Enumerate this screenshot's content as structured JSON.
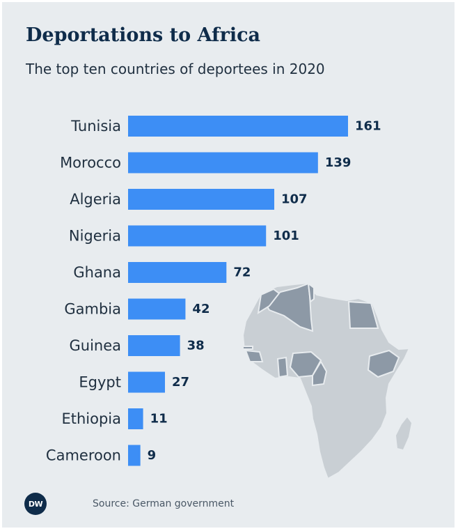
{
  "header": {
    "title": "Deportations to Africa",
    "subtitle": "The top ten countries of deportees in 2020"
  },
  "chart_data": {
    "type": "bar",
    "orientation": "horizontal",
    "categories": [
      "Tunisia",
      "Morocco",
      "Algeria",
      "Nigeria",
      "Ghana",
      "Gambia",
      "Guinea",
      "Egypt",
      "Ethiopia",
      "Cameroon"
    ],
    "values": [
      161,
      139,
      107,
      101,
      72,
      42,
      38,
      27,
      11,
      9
    ],
    "title": "Deportations to Africa",
    "subtitle": "The top ten countries of deportees in 2020",
    "xlabel": "",
    "ylabel": "",
    "xlim": [
      0,
      161
    ],
    "grid": false,
    "data_labels": true,
    "bar_color": "#3d8ef5"
  },
  "colors": {
    "background": "#e8ecef",
    "bar": "#3d8ef5",
    "title": "#0f2c4a",
    "map_land": "#c9cfd4",
    "map_highlight": "#8d99a6",
    "map_border": "#e8ecef"
  },
  "map": {
    "icon": "africa-map-icon",
    "highlighted_countries": [
      "Tunisia",
      "Morocco",
      "Algeria",
      "Nigeria",
      "Ghana",
      "Gambia",
      "Guinea",
      "Egypt",
      "Ethiopia",
      "Cameroon"
    ]
  },
  "footer": {
    "logo_text": "DW",
    "source": "Source: German government"
  }
}
